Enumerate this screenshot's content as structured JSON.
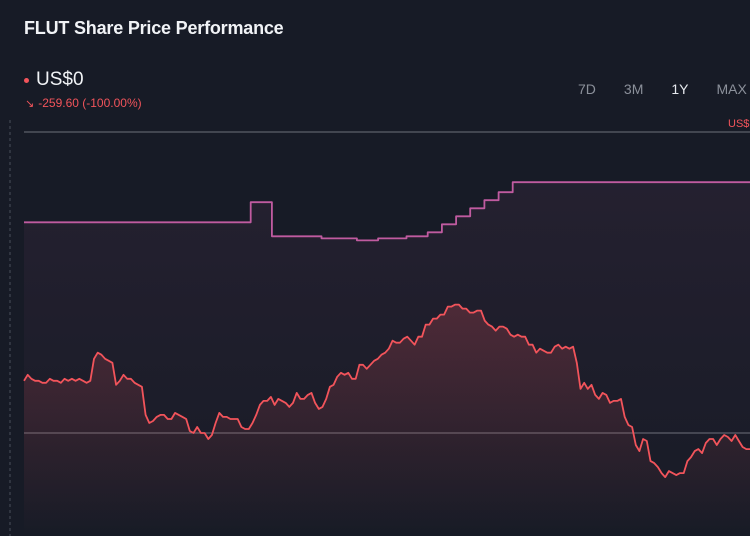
{
  "title": "FLUT Share Price Performance",
  "price": "US$0",
  "change": "-259.60 (-100.00%)",
  "tabs": [
    {
      "label": "7D",
      "active": false
    },
    {
      "label": "3M",
      "active": false
    },
    {
      "label": "1Y",
      "active": true
    },
    {
      "label": "MAX",
      "active": false
    }
  ],
  "right_axis_label": "US$",
  "colors": {
    "background": "#171b26",
    "price_line": "#f2545b",
    "estimate_line": "#c05ba0",
    "gridline": "#8a8e97"
  },
  "chart_data": {
    "type": "line",
    "series": [
      {
        "key": "price",
        "values": [
          66,
          69,
          67,
          66,
          66,
          65,
          65,
          67,
          66,
          66,
          65,
          67,
          66,
          67,
          66,
          67,
          66,
          65,
          66,
          77,
          80,
          79,
          77,
          76,
          75,
          64,
          66,
          69,
          67,
          67,
          65,
          64,
          63,
          49,
          45,
          46,
          48,
          49,
          49,
          47,
          47,
          50,
          49,
          48,
          47,
          41,
          40,
          43,
          40,
          40,
          37,
          39,
          45,
          50,
          48,
          48,
          47,
          47,
          47,
          43,
          42,
          42,
          45,
          49,
          54,
          56,
          56,
          58,
          54,
          57,
          56,
          55,
          53,
          55,
          60,
          57,
          57,
          59,
          60,
          55,
          52,
          53,
          57,
          63,
          64,
          68,
          70,
          69,
          70,
          67,
          67,
          74,
          74,
          72,
          74,
          76,
          77,
          79,
          80,
          82,
          86,
          85,
          85,
          87,
          88,
          86,
          84,
          88,
          88,
          94,
          94,
          97,
          97,
          99,
          99,
          103,
          103,
          104,
          104,
          102,
          102,
          100,
          100,
          101,
          101,
          96,
          94,
          93,
          91,
          93,
          93,
          92,
          89,
          88,
          89,
          88,
          88,
          84,
          84,
          80,
          82,
          81,
          80,
          80,
          83,
          84,
          82,
          83,
          82,
          83,
          75,
          62,
          65,
          62,
          64,
          59,
          57,
          60,
          59,
          55,
          56,
          56,
          57,
          48,
          44,
          43,
          34,
          31,
          37,
          36,
          26,
          25,
          23,
          20,
          18,
          21,
          20,
          19,
          20,
          20,
          26,
          28,
          31,
          32,
          30,
          35,
          37,
          37,
          34,
          37,
          39,
          38,
          36,
          39,
          36,
          33,
          32,
          32
        ]
      },
      {
        "key": "estimate",
        "values": [
          145,
          145,
          145,
          145,
          145,
          145,
          145,
          145,
          145,
          145,
          145,
          145,
          145,
          145,
          145,
          145,
          145,
          145,
          145,
          145,
          145,
          145,
          145,
          145,
          145,
          145,
          145,
          145,
          145,
          145,
          145,
          145,
          145,
          145,
          145,
          145,
          145,
          145,
          145,
          145,
          145,
          145,
          145,
          145,
          145,
          145,
          145,
          145,
          145,
          145,
          145,
          145,
          145,
          145,
          145,
          145,
          145,
          145,
          145,
          145,
          145,
          145,
          145,
          145,
          155,
          155,
          155,
          155,
          155,
          155,
          138,
          138,
          138,
          138,
          138,
          138,
          138,
          138,
          138,
          138,
          138,
          138,
          138,
          138,
          137,
          137,
          137,
          137,
          137,
          137,
          137,
          137,
          137,
          137,
          136,
          136,
          136,
          136,
          136,
          136,
          137,
          137,
          137,
          137,
          137,
          137,
          137,
          137,
          138,
          138,
          138,
          138,
          138,
          138,
          140,
          140,
          140,
          140,
          144,
          144,
          144,
          144,
          148,
          148,
          148,
          148,
          152,
          152,
          152,
          152,
          156,
          156,
          156,
          156,
          160,
          160,
          160,
          160,
          165,
          165,
          165,
          165,
          165,
          165,
          165,
          165,
          165,
          165,
          165,
          165,
          165,
          165,
          165,
          165,
          165,
          165,
          165,
          165,
          165,
          165,
          165,
          165,
          165,
          165,
          165,
          165,
          165,
          165,
          165,
          165,
          165,
          165,
          165,
          165,
          165,
          165,
          165,
          165,
          165,
          165,
          165,
          165,
          165,
          165,
          165,
          165,
          165,
          165,
          165,
          165,
          165,
          165,
          165,
          165,
          165,
          165,
          165,
          165,
          165,
          165,
          165,
          165,
          165,
          165,
          165,
          165
        ]
      }
    ],
    "y_range": [
      0,
      190
    ],
    "gridlines": [
      40,
      190
    ],
    "right_axis_tick": "US$"
  }
}
